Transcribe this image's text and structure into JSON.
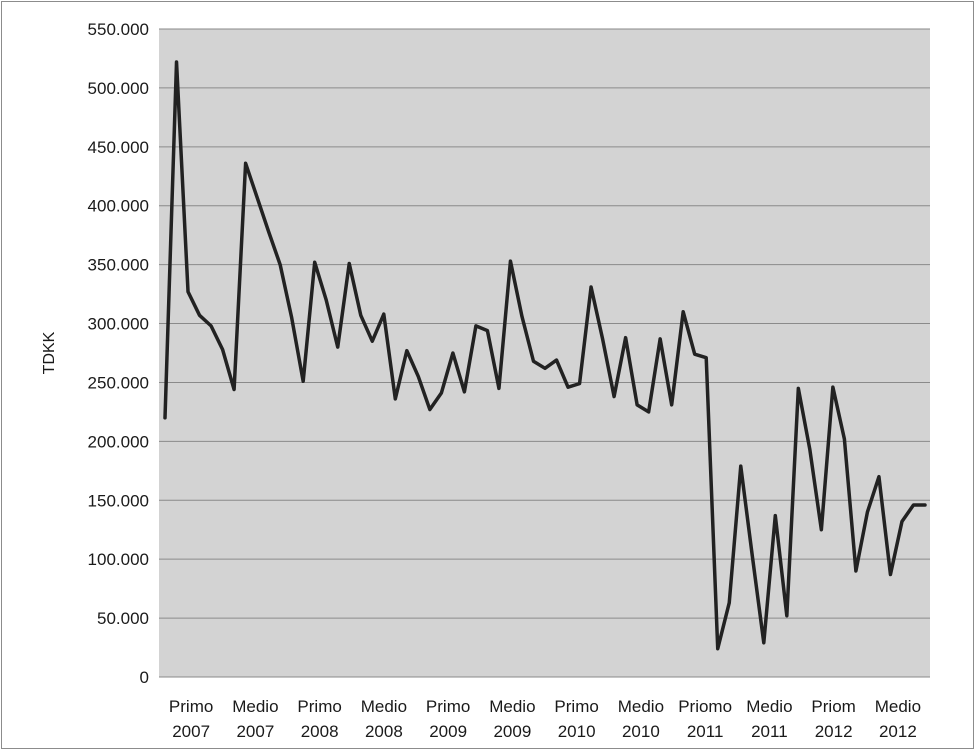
{
  "chart_data": {
    "type": "line",
    "title": "",
    "xlabel": "",
    "ylabel": "TDKK",
    "ylim": [
      0,
      550000
    ],
    "y_ticks": [
      "0",
      "50.000",
      "100.000",
      "150.000",
      "200.000",
      "250.000",
      "300.000",
      "350.000",
      "400.000",
      "450.000",
      "500.000",
      "550.000"
    ],
    "x_tick_labels": [
      [
        "Primo",
        "2007"
      ],
      [
        "Medio",
        "2007"
      ],
      [
        "Primo",
        "2008"
      ],
      [
        "Medio",
        "2008"
      ],
      [
        "Primo",
        "2009"
      ],
      [
        "Medio",
        "2009"
      ],
      [
        "Primo",
        "2010"
      ],
      [
        "Medio",
        "2010"
      ],
      [
        "Priomo",
        "2011"
      ],
      [
        "Medio",
        "2011"
      ],
      [
        "Priom",
        "2012"
      ],
      [
        "Medio",
        "2012"
      ]
    ],
    "grid": true,
    "plot_background": "#d3d3d3",
    "line_color": "#222222",
    "series": [
      {
        "values": [
          220000,
          522000,
          327000,
          307000,
          298000,
          278000,
          244000,
          436000,
          407000,
          378000,
          350000,
          305000,
          251000,
          352000,
          320000,
          280000,
          351000,
          307000,
          285000,
          308000,
          236000,
          277000,
          255000,
          227000,
          241000,
          275000,
          242000,
          298000,
          294000,
          245000,
          353000,
          306000,
          268000,
          262000,
          269000,
          246000,
          249000,
          331000,
          287000,
          238000,
          288000,
          231000,
          225000,
          287000,
          231000,
          310000,
          274000,
          271000,
          24000,
          63000,
          179000,
          103000,
          29000,
          137000,
          52000,
          245000,
          193000,
          125000,
          246000,
          202000,
          90000,
          140000,
          170000,
          87000,
          132000,
          146000,
          146000
        ]
      }
    ]
  }
}
